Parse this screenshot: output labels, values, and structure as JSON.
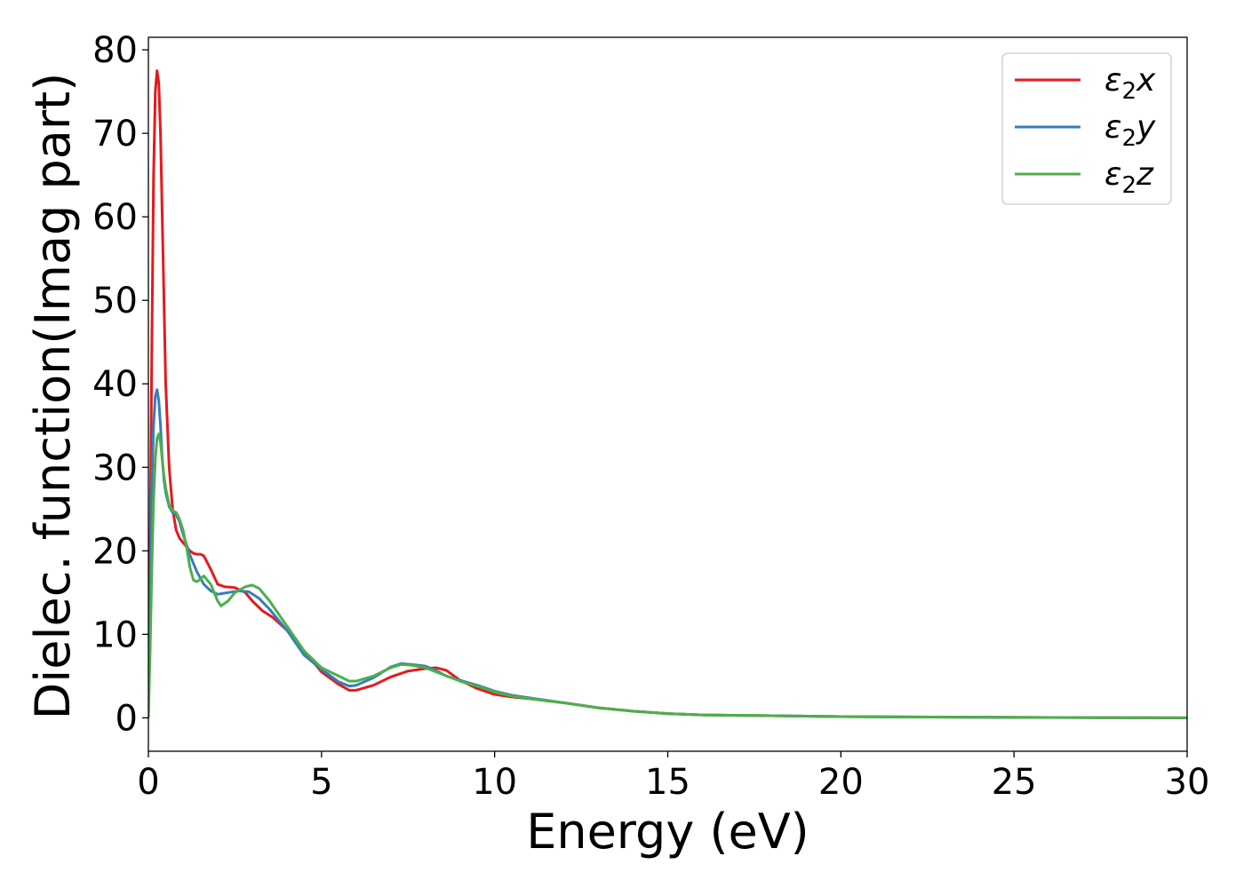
{
  "chart_data": {
    "type": "line",
    "xlabel": "Energy (eV)",
    "ylabel": "Dielec. function(Imag part)",
    "xlim": [
      0,
      30
    ],
    "ylim": [
      -4,
      81.5
    ],
    "xticks": [
      0,
      5,
      10,
      15,
      20,
      25,
      30
    ],
    "yticks": [
      0,
      10,
      20,
      30,
      40,
      50,
      60,
      70,
      80
    ],
    "grid": false,
    "legend_position": "top-right",
    "series": [
      {
        "name": "ε₂x",
        "legend": {
          "base": "ε",
          "sub": "2",
          "tail": "x"
        },
        "color": "#e41a1c",
        "x": [
          0,
          0.05,
          0.1,
          0.15,
          0.2,
          0.25,
          0.3,
          0.35,
          0.4,
          0.45,
          0.5,
          0.6,
          0.7,
          0.8,
          0.9,
          1.0,
          1.1,
          1.2,
          1.3,
          1.4,
          1.5,
          1.6,
          1.8,
          2.0,
          2.2,
          2.5,
          2.8,
          3.0,
          3.3,
          3.6,
          4.0,
          4.5,
          5.0,
          5.5,
          5.8,
          6.0,
          6.5,
          7.0,
          7.5,
          8.0,
          8.3,
          8.6,
          9.0,
          9.5,
          10.0,
          10.5,
          11.0,
          12.0,
          13.0,
          14.0,
          15.0,
          16.0,
          18.0,
          20.0,
          25.0,
          30.0
        ],
        "y": [
          0,
          20,
          45,
          65,
          75,
          77.5,
          76,
          70,
          60,
          50,
          40,
          30,
          25,
          22.5,
          21.5,
          21,
          20.5,
          20,
          19.7,
          19.6,
          19.6,
          19.4,
          17.8,
          16.0,
          15.7,
          15.6,
          15.0,
          14.0,
          12.8,
          12.0,
          10.5,
          8.0,
          5.5,
          4.0,
          3.3,
          3.3,
          3.9,
          4.9,
          5.6,
          5.9,
          6.0,
          5.7,
          4.5,
          3.5,
          2.8,
          2.5,
          2.3,
          1.8,
          1.2,
          0.8,
          0.5,
          0.35,
          0.25,
          0.15,
          0.05,
          0.0
        ]
      },
      {
        "name": "ε₂y",
        "legend": {
          "base": "ε",
          "sub": "2",
          "tail": "y"
        },
        "color": "#377eb8",
        "x": [
          0,
          0.05,
          0.1,
          0.15,
          0.2,
          0.25,
          0.3,
          0.35,
          0.4,
          0.45,
          0.5,
          0.6,
          0.7,
          0.8,
          0.9,
          1.0,
          1.2,
          1.4,
          1.6,
          1.8,
          2.0,
          2.3,
          2.6,
          2.9,
          3.2,
          3.5,
          4.0,
          4.5,
          5.0,
          5.5,
          5.8,
          6.0,
          6.5,
          7.0,
          7.3,
          7.6,
          8.0,
          8.3,
          8.6,
          9.0,
          9.5,
          10.0,
          10.5,
          11.0,
          12.0,
          13.0,
          14.0,
          15.0,
          16.0,
          18.0,
          20.0,
          25.0,
          30.0
        ],
        "y": [
          0,
          15,
          28,
          35,
          38.5,
          39.3,
          38,
          35,
          31,
          28.5,
          27,
          25.3,
          24.6,
          24.3,
          23.5,
          22,
          19.5,
          17.5,
          16.0,
          15.2,
          14.8,
          15.0,
          15.2,
          15.1,
          14.3,
          13.0,
          10.5,
          7.5,
          5.8,
          4.3,
          3.8,
          3.9,
          4.8,
          6.1,
          6.5,
          6.4,
          6.2,
          5.7,
          5.0,
          4.5,
          3.9,
          3.2,
          2.7,
          2.4,
          1.8,
          1.2,
          0.8,
          0.5,
          0.35,
          0.25,
          0.15,
          0.05,
          0.0
        ]
      },
      {
        "name": "ε₂z",
        "legend": {
          "base": "ε",
          "sub": "2",
          "tail": "z"
        },
        "color": "#4daf4a",
        "x": [
          0,
          0.05,
          0.1,
          0.15,
          0.2,
          0.25,
          0.3,
          0.35,
          0.4,
          0.45,
          0.5,
          0.6,
          0.7,
          0.8,
          0.9,
          1.0,
          1.1,
          1.2,
          1.3,
          1.4,
          1.5,
          1.6,
          1.8,
          2.0,
          2.1,
          2.3,
          2.5,
          2.8,
          3.0,
          3.2,
          3.5,
          4.0,
          4.5,
          5.0,
          5.5,
          5.8,
          6.0,
          6.5,
          7.0,
          7.3,
          7.6,
          8.0,
          8.5,
          9.0,
          9.5,
          10.0,
          10.5,
          11.0,
          12.0,
          13.0,
          14.0,
          15.0,
          16.0,
          18.0,
          20.0,
          25.0,
          30.0
        ],
        "y": [
          0,
          8,
          18,
          26,
          31,
          33.5,
          34,
          33,
          31,
          29,
          27.5,
          25.5,
          24.8,
          24.6,
          23.8,
          22.5,
          20.5,
          18,
          16.5,
          16.3,
          16.6,
          17.0,
          16.0,
          14.0,
          13.4,
          14.0,
          15.0,
          15.7,
          15.9,
          15.5,
          14.0,
          11.0,
          8.0,
          6.0,
          5.0,
          4.4,
          4.4,
          5.0,
          6.0,
          6.4,
          6.3,
          6.0,
          5.2,
          4.4,
          3.8,
          3.1,
          2.6,
          2.3,
          1.8,
          1.2,
          0.8,
          0.5,
          0.35,
          0.25,
          0.15,
          0.05,
          0.0
        ]
      }
    ]
  }
}
